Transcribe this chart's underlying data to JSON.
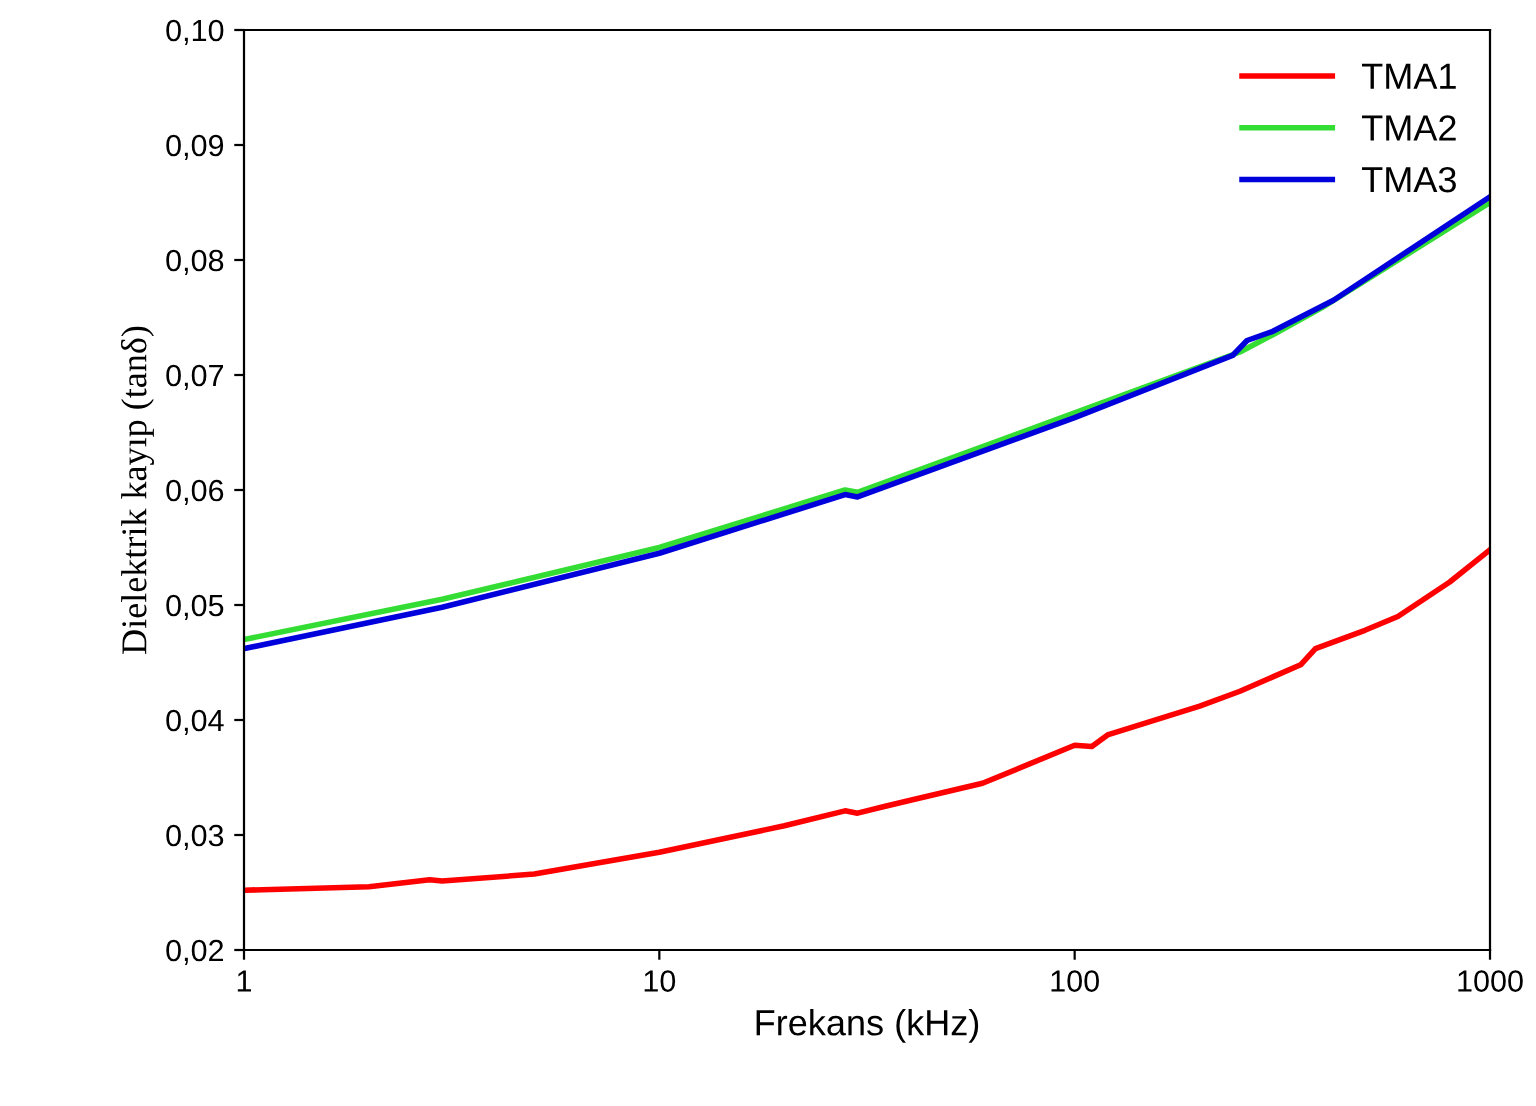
{
  "chart_data": {
    "type": "line",
    "xlabel": "Frekans (kHz)",
    "ylabel": "Dielektrik kayıp (tanδ)",
    "log": "x",
    "xlim": [
      1,
      1000
    ],
    "xticks": [
      1,
      10,
      100,
      1000
    ],
    "ylim": [
      0.02,
      0.1
    ],
    "yticks": [
      {
        "value": 0.02,
        "label": "0,02"
      },
      {
        "value": 0.03,
        "label": "0,03"
      },
      {
        "value": 0.04,
        "label": "0,04"
      },
      {
        "value": 0.05,
        "label": "0,05"
      },
      {
        "value": 0.06,
        "label": "0,06"
      },
      {
        "value": 0.07,
        "label": "0,07"
      },
      {
        "value": 0.08,
        "label": "0,08"
      },
      {
        "value": 0.09,
        "label": "0,09"
      },
      {
        "value": 0.1,
        "label": "0,10"
      }
    ],
    "grid": false,
    "legend": "top right",
    "marker": "none",
    "line_style": "solid",
    "series": [
      {
        "name": "TMA1",
        "color": "#ff0000",
        "x": [
          1,
          2,
          2.8,
          3,
          5,
          10,
          20,
          28,
          30,
          35,
          40,
          60,
          100,
          110,
          120,
          200,
          250,
          350,
          380,
          500,
          600,
          800,
          1000
        ],
        "values": [
          0.0252,
          0.0255,
          0.0261,
          0.026,
          0.0266,
          0.0285,
          0.0308,
          0.0321,
          0.0319,
          0.0325,
          0.033,
          0.0345,
          0.0378,
          0.0377,
          0.0387,
          0.0412,
          0.0425,
          0.0448,
          0.0462,
          0.0478,
          0.049,
          0.052,
          0.0548
        ]
      },
      {
        "name": "TMA2",
        "color": "#33dd33",
        "x": [
          1,
          3,
          10,
          28,
          30,
          100,
          250,
          300,
          400,
          1000
        ],
        "values": [
          0.047,
          0.0505,
          0.055,
          0.06,
          0.0598,
          0.0667,
          0.072,
          0.0735,
          0.076,
          0.085
        ]
      },
      {
        "name": "TMA3",
        "color": "#0000dd",
        "x": [
          1,
          3,
          10,
          28,
          30,
          100,
          240,
          260,
          300,
          420,
          1000
        ],
        "values": [
          0.0462,
          0.0498,
          0.0545,
          0.0596,
          0.0594,
          0.0663,
          0.0717,
          0.073,
          0.0738,
          0.0765,
          0.0855
        ]
      }
    ]
  }
}
